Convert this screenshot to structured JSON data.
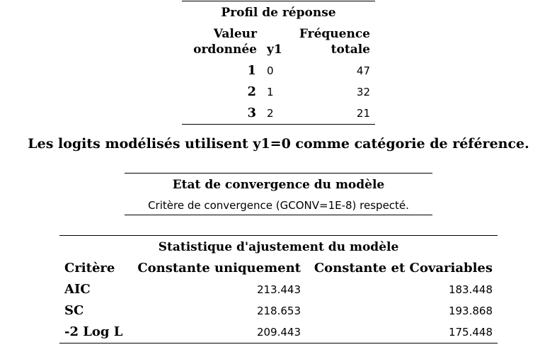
{
  "profil": {
    "title": "Profil de réponse",
    "headers": {
      "valeur_line1": "Valeur",
      "valeur_line2": "ordonnée",
      "y1": "y1",
      "freq_line1": "Fréquence",
      "freq_line2": "totale"
    },
    "rows": [
      {
        "valeur": "1",
        "y1": "0",
        "freq": "47"
      },
      {
        "valeur": "2",
        "y1": "1",
        "freq": "32"
      },
      {
        "valeur": "3",
        "y1": "2",
        "freq": "21"
      }
    ]
  },
  "note": "Les logits modélisés utilisent y1=0 comme catégorie de référence.",
  "convergence": {
    "title": "Etat de convergence du modèle",
    "message": "Critère de convergence (GCONV=1E-8) respecté."
  },
  "ajustement": {
    "title": "Statistique d'ajustement du modèle",
    "headers": {
      "critere": "Critère",
      "constante": "Constante uniquement",
      "covariables": "Constante et Covariables"
    },
    "rows": [
      {
        "critere": "AIC",
        "constante": "213.443",
        "covariables": "183.448"
      },
      {
        "critere": "SC",
        "constante": "218.653",
        "covariables": "193.868"
      },
      {
        "critere": "-2 Log L",
        "constante": "209.443",
        "covariables": "175.448"
      }
    ]
  }
}
